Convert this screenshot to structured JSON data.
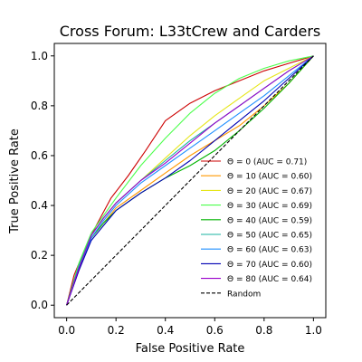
{
  "chart_data": {
    "type": "line",
    "title": "Cross Forum: L33tCrew and Carders",
    "xlabel": "False Positive Rate",
    "ylabel": "True Positive Rate",
    "xlim": [
      -0.05,
      1.05
    ],
    "ylim": [
      -0.05,
      1.05
    ],
    "xticks": [
      "0.0",
      "0.2",
      "0.4",
      "0.6",
      "0.8",
      "1.0"
    ],
    "yticks": [
      "0.0",
      "0.2",
      "0.4",
      "0.6",
      "0.8",
      "1.0"
    ],
    "grid": false,
    "legend": "lower-right",
    "series": [
      {
        "name": "Θ = 0 (AUC = 0.71)",
        "color": "#cc0000",
        "dash": "solid",
        "x": [
          0,
          0.03,
          0.08,
          0.12,
          0.18,
          0.25,
          0.32,
          0.4,
          0.5,
          0.6,
          0.7,
          0.8,
          0.9,
          1.0
        ],
        "y": [
          0,
          0.12,
          0.24,
          0.32,
          0.43,
          0.52,
          0.62,
          0.74,
          0.81,
          0.86,
          0.9,
          0.94,
          0.97,
          1.0
        ]
      },
      {
        "name": "Θ = 10 (AUC = 0.60)",
        "color": "#ff9900",
        "dash": "solid",
        "x": [
          0,
          0.05,
          0.1,
          0.15,
          0.2,
          0.3,
          0.4,
          0.5,
          0.6,
          0.7,
          0.8,
          0.9,
          1.0
        ],
        "y": [
          0,
          0.15,
          0.27,
          0.33,
          0.39,
          0.46,
          0.53,
          0.6,
          0.66,
          0.72,
          0.8,
          0.89,
          1.0
        ]
      },
      {
        "name": "Θ = 20 (AUC = 0.67)",
        "color": "#e6e619",
        "dash": "solid",
        "x": [
          0,
          0.05,
          0.1,
          0.15,
          0.2,
          0.3,
          0.4,
          0.5,
          0.6,
          0.7,
          0.8,
          0.9,
          1.0
        ],
        "y": [
          0,
          0.16,
          0.28,
          0.35,
          0.41,
          0.5,
          0.59,
          0.68,
          0.76,
          0.83,
          0.9,
          0.95,
          1.0
        ]
      },
      {
        "name": "Θ = 30 (AUC = 0.69)",
        "color": "#4cff4c",
        "dash": "solid",
        "x": [
          0,
          0.05,
          0.1,
          0.15,
          0.2,
          0.3,
          0.4,
          0.5,
          0.6,
          0.7,
          0.8,
          0.9,
          1.0
        ],
        "y": [
          0,
          0.17,
          0.29,
          0.36,
          0.43,
          0.56,
          0.67,
          0.77,
          0.85,
          0.91,
          0.95,
          0.98,
          1.0
        ]
      },
      {
        "name": "Θ = 40 (AUC = 0.59)",
        "color": "#00b300",
        "dash": "solid",
        "x": [
          0,
          0.05,
          0.1,
          0.15,
          0.2,
          0.3,
          0.4,
          0.5,
          0.6,
          0.7,
          0.8,
          0.9,
          1.0
        ],
        "y": [
          0,
          0.15,
          0.27,
          0.33,
          0.38,
          0.45,
          0.51,
          0.56,
          0.62,
          0.7,
          0.79,
          0.89,
          1.0
        ]
      },
      {
        "name": "Θ = 50 (AUC = 0.65)",
        "color": "#19b3a0",
        "dash": "solid",
        "x": [
          0,
          0.05,
          0.1,
          0.15,
          0.2,
          0.3,
          0.4,
          0.5,
          0.6,
          0.7,
          0.8,
          0.9,
          1.0
        ],
        "y": [
          0,
          0.16,
          0.28,
          0.35,
          0.41,
          0.5,
          0.58,
          0.66,
          0.73,
          0.8,
          0.87,
          0.94,
          1.0
        ]
      },
      {
        "name": "Θ = 60 (AUC = 0.63)",
        "color": "#1f8fff",
        "dash": "solid",
        "x": [
          0,
          0.05,
          0.1,
          0.15,
          0.2,
          0.3,
          0.4,
          0.5,
          0.6,
          0.7,
          0.8,
          0.9,
          1.0
        ],
        "y": [
          0,
          0.15,
          0.27,
          0.34,
          0.4,
          0.49,
          0.56,
          0.63,
          0.7,
          0.77,
          0.84,
          0.92,
          1.0
        ]
      },
      {
        "name": "Θ = 70 (AUC = 0.60)",
        "color": "#0000b3",
        "dash": "solid",
        "x": [
          0,
          0.05,
          0.1,
          0.15,
          0.2,
          0.3,
          0.4,
          0.5,
          0.6,
          0.7,
          0.8,
          0.9,
          1.0
        ],
        "y": [
          0,
          0.14,
          0.26,
          0.32,
          0.38,
          0.45,
          0.51,
          0.58,
          0.66,
          0.74,
          0.82,
          0.91,
          1.0
        ]
      },
      {
        "name": "Θ = 80 (AUC = 0.64)",
        "color": "#9900cc",
        "dash": "solid",
        "x": [
          0,
          0.05,
          0.1,
          0.15,
          0.2,
          0.3,
          0.4,
          0.5,
          0.6,
          0.7,
          0.8,
          0.9,
          1.0
        ],
        "y": [
          0,
          0.15,
          0.28,
          0.35,
          0.41,
          0.5,
          0.57,
          0.65,
          0.73,
          0.8,
          0.87,
          0.94,
          1.0
        ]
      },
      {
        "name": "Random",
        "color": "#000000",
        "dash": "dashed",
        "x": [
          0,
          1.0
        ],
        "y": [
          0,
          1.0
        ]
      }
    ]
  }
}
